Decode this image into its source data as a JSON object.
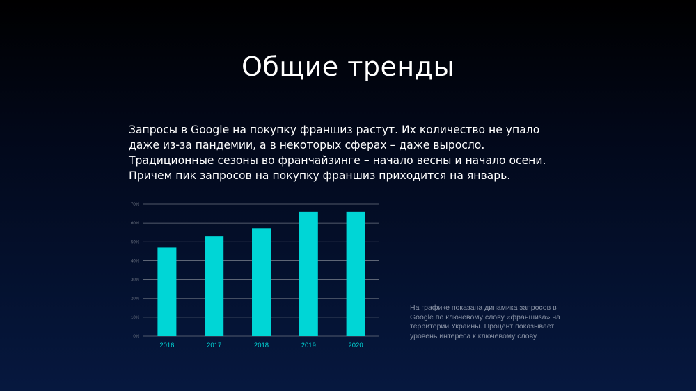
{
  "slide": {
    "title": "Общие тренды",
    "body": "Запросы в Google на покупку франшиз растут. Их количество не упало даже из-за пандемии, а в некоторых сферах – даже выросло. Традиционные сезоны во франчайзинге – начало весны и начало осени. Причем пик запросов на покупку франшиз приходится на январь.",
    "note": "На графике показана динамика запросов в Google по ключевому слову «франшиза» на территории Украины. Процент показывает уровень интереса к ключевому слову."
  },
  "colors": {
    "bar": "#00d6d6",
    "grid": "#6b7280",
    "tick_y": "#6b7280",
    "tick_x": "#00d6d6"
  },
  "chart_data": {
    "type": "bar",
    "categories": [
      "2016",
      "2017",
      "2018",
      "2019",
      "2020"
    ],
    "values": [
      47,
      53,
      57,
      66,
      66
    ],
    "y_ticks": [
      "0%",
      "10%",
      "20%",
      "30%",
      "40%",
      "50%",
      "60%",
      "70%"
    ],
    "ylim": [
      0,
      70
    ],
    "grid": true,
    "unit": "%",
    "title": "",
    "xlabel": "",
    "ylabel": ""
  }
}
